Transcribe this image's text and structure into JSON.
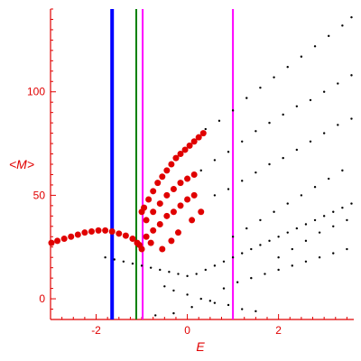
{
  "chart_data": {
    "type": "scatter",
    "title": "",
    "xlabel": "E",
    "ylabel": "<M>",
    "xlim": [
      -3.0,
      3.65
    ],
    "ylim": [
      -10,
      140
    ],
    "x_ticks": [
      -2,
      0,
      2
    ],
    "y_ticks": [
      0,
      50,
      100
    ],
    "x_tick_labels": [
      "-2",
      "0",
      "2"
    ],
    "y_tick_labels": [
      "0",
      "50",
      "100"
    ],
    "grid": false,
    "colors": {
      "axes": "#e00000",
      "points_black": "#000000",
      "points_red": "#e00000",
      "line_blue": "#0000ff",
      "line_green": "#008000",
      "line_magenta": "#ff00ff"
    },
    "vertical_lines": [
      {
        "x": -1.65,
        "color": "blue"
      },
      {
        "x": -1.12,
        "color": "green"
      },
      {
        "x": -0.98,
        "color": "magenta"
      },
      {
        "x": 1.0,
        "color": "magenta"
      }
    ],
    "series": [
      {
        "color": "red",
        "description": "lower arc",
        "points": [
          [
            -2.98,
            27
          ],
          [
            -2.85,
            28
          ],
          [
            -2.7,
            29
          ],
          [
            -2.55,
            30
          ],
          [
            -2.4,
            31
          ],
          [
            -2.25,
            32
          ],
          [
            -2.1,
            32.5
          ],
          [
            -1.95,
            33
          ],
          [
            -1.8,
            33
          ],
          [
            -1.65,
            32.5
          ],
          [
            -1.5,
            31.5
          ],
          [
            -1.35,
            30.5
          ],
          [
            -1.2,
            29
          ],
          [
            -1.1,
            27
          ],
          [
            -1.05,
            26
          ],
          [
            -1.0,
            24
          ]
        ]
      },
      {
        "color": "red",
        "description": "upper branch",
        "points": [
          [
            -1.0,
            42
          ],
          [
            -0.95,
            44
          ],
          [
            -0.85,
            48
          ],
          [
            -0.75,
            52
          ],
          [
            -0.65,
            56
          ],
          [
            -0.55,
            59
          ],
          [
            -0.45,
            62
          ],
          [
            -0.35,
            65
          ],
          [
            -0.25,
            68
          ],
          [
            -0.15,
            70
          ],
          [
            -0.05,
            72
          ],
          [
            0.05,
            74
          ],
          [
            0.15,
            76
          ],
          [
            0.25,
            78
          ],
          [
            0.35,
            80
          ]
        ]
      },
      {
        "color": "red",
        "description": "second branch",
        "points": [
          [
            -0.9,
            38
          ],
          [
            -0.75,
            42
          ],
          [
            -0.6,
            46
          ],
          [
            -0.45,
            50
          ],
          [
            -0.3,
            53
          ],
          [
            -0.15,
            56
          ],
          [
            0.0,
            58
          ],
          [
            0.15,
            60
          ]
        ]
      },
      {
        "color": "red",
        "description": "scattered lower points",
        "points": [
          [
            -0.9,
            30
          ],
          [
            -0.75,
            33
          ],
          [
            -0.6,
            36
          ],
          [
            -0.45,
            40
          ],
          [
            -0.3,
            42
          ],
          [
            -0.15,
            45
          ],
          [
            0.0,
            48
          ],
          [
            0.15,
            50
          ],
          [
            -0.8,
            27
          ],
          [
            -0.55,
            24
          ],
          [
            -0.35,
            28
          ],
          [
            -0.2,
            32
          ],
          [
            0.1,
            38
          ],
          [
            0.3,
            42
          ]
        ]
      },
      {
        "color": "black",
        "description": "top diagonal band",
        "points": [
          [
            0.4,
            82
          ],
          [
            0.7,
            86
          ],
          [
            1.0,
            91
          ],
          [
            1.3,
            97
          ],
          [
            1.6,
            102
          ],
          [
            1.9,
            107
          ],
          [
            2.2,
            112
          ],
          [
            2.5,
            117
          ],
          [
            2.8,
            122
          ],
          [
            3.1,
            127
          ],
          [
            3.4,
            132
          ],
          [
            3.6,
            136
          ]
        ]
      },
      {
        "color": "black",
        "description": "second diagonal band",
        "points": [
          [
            0.3,
            62
          ],
          [
            0.6,
            67
          ],
          [
            0.9,
            71
          ],
          [
            1.2,
            76
          ],
          [
            1.5,
            81
          ],
          [
            1.8,
            85
          ],
          [
            2.1,
            89
          ],
          [
            2.4,
            93
          ],
          [
            2.7,
            96
          ],
          [
            3.0,
            100
          ],
          [
            3.3,
            104
          ],
          [
            3.6,
            108
          ]
        ]
      },
      {
        "color": "black",
        "description": "third band",
        "points": [
          [
            0.6,
            50
          ],
          [
            0.9,
            53
          ],
          [
            1.2,
            57
          ],
          [
            1.5,
            61
          ],
          [
            1.8,
            65
          ],
          [
            2.1,
            68
          ],
          [
            2.4,
            72
          ],
          [
            2.7,
            76
          ],
          [
            3.0,
            80
          ],
          [
            3.3,
            84
          ],
          [
            3.6,
            87
          ]
        ]
      },
      {
        "color": "black",
        "description": "dense cloud",
        "points": [
          [
            -1.8,
            20
          ],
          [
            -1.6,
            19
          ],
          [
            -1.4,
            18
          ],
          [
            -1.2,
            17
          ],
          [
            -1.0,
            16
          ],
          [
            -0.8,
            15
          ],
          [
            -0.6,
            14
          ],
          [
            -0.4,
            13
          ],
          [
            -0.2,
            12
          ],
          [
            0.0,
            11
          ],
          [
            0.2,
            12
          ],
          [
            0.4,
            14
          ],
          [
            0.6,
            16
          ],
          [
            0.8,
            18
          ],
          [
            1.0,
            20
          ],
          [
            1.2,
            22
          ],
          [
            1.4,
            24
          ],
          [
            1.6,
            26
          ],
          [
            1.8,
            28
          ],
          [
            2.0,
            30
          ],
          [
            2.2,
            32
          ],
          [
            2.4,
            34
          ],
          [
            2.6,
            36
          ],
          [
            2.8,
            38
          ],
          [
            3.0,
            40
          ],
          [
            3.2,
            42
          ],
          [
            3.4,
            44
          ],
          [
            3.6,
            46
          ],
          [
            -0.5,
            6
          ],
          [
            -0.3,
            4
          ],
          [
            0.0,
            2
          ],
          [
            0.3,
            0
          ],
          [
            0.6,
            -2
          ],
          [
            0.9,
            -3
          ],
          [
            1.2,
            -5
          ],
          [
            1.5,
            -6
          ],
          [
            0.8,
            5
          ],
          [
            1.1,
            8
          ],
          [
            1.4,
            10
          ],
          [
            1.7,
            12
          ],
          [
            2.0,
            14
          ],
          [
            2.3,
            16
          ],
          [
            2.6,
            18
          ],
          [
            2.9,
            20
          ],
          [
            3.2,
            22
          ],
          [
            3.5,
            24
          ],
          [
            1.0,
            30
          ],
          [
            1.3,
            34
          ],
          [
            1.6,
            38
          ],
          [
            1.9,
            42
          ],
          [
            2.2,
            46
          ],
          [
            2.5,
            50
          ],
          [
            2.8,
            54
          ],
          [
            3.1,
            58
          ],
          [
            3.4,
            62
          ],
          [
            -0.7,
            -8
          ],
          [
            -0.3,
            -7
          ],
          [
            0.1,
            -4
          ],
          [
            0.5,
            -1
          ],
          [
            2.0,
            20
          ],
          [
            2.3,
            24
          ],
          [
            2.6,
            28
          ],
          [
            2.9,
            32
          ],
          [
            3.2,
            35
          ],
          [
            3.5,
            38
          ]
        ]
      }
    ]
  }
}
